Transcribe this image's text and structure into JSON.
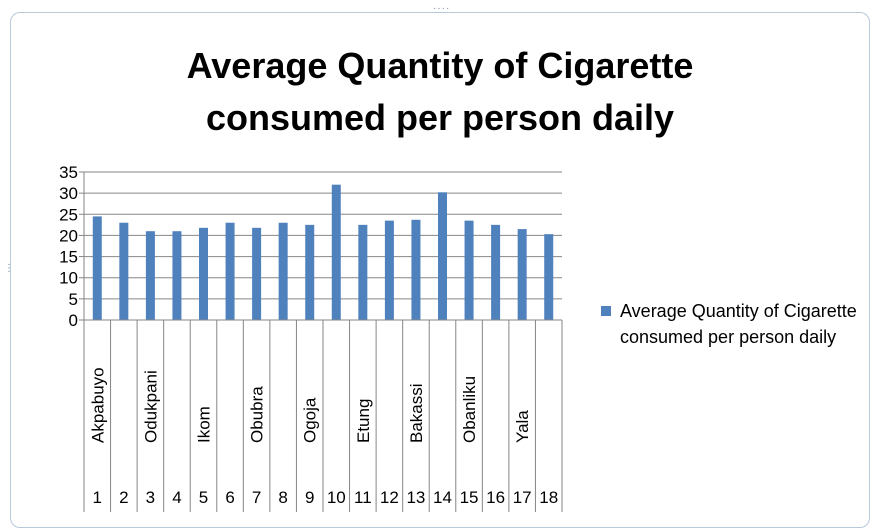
{
  "colors": {
    "bar": "#4f81bd",
    "grid": "#868686",
    "axis": "#868686",
    "frame": "#b8c9d9"
  },
  "chart_data": {
    "type": "bar",
    "title": "Average Quantity of Cigarette consumed per person daily",
    "xlabel": "",
    "ylabel": "",
    "ylim": [
      0,
      35
    ],
    "yticks": [
      0,
      5,
      10,
      15,
      20,
      25,
      30,
      35
    ],
    "grid": true,
    "legend_position": "right",
    "categories": [
      "1",
      "2",
      "3",
      "4",
      "5",
      "6",
      "7",
      "8",
      "9",
      "10",
      "11",
      "12",
      "13",
      "14",
      "15",
      "16",
      "17",
      "18"
    ],
    "category_names": [
      "Akpabuyo",
      "",
      "Odukpani",
      "",
      "Ikom",
      "",
      "Obubra",
      "",
      "Ogoja",
      "",
      "Etung",
      "",
      "Bakassi",
      "",
      "Obanliku",
      "",
      "Yala",
      ""
    ],
    "series": [
      {
        "name": "Average Quantity of Cigarette consumed per person daily",
        "values": [
          24.5,
          23,
          21,
          21,
          21.8,
          23,
          21.8,
          23,
          22.5,
          32,
          22.5,
          23.5,
          23.7,
          30.2,
          23.5,
          22.5,
          21.5,
          20.3
        ]
      }
    ]
  }
}
